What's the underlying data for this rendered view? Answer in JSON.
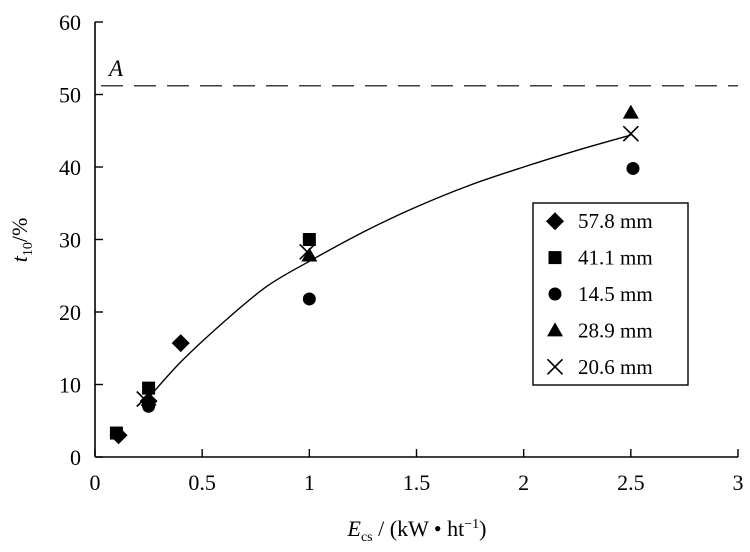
{
  "chart_data": {
    "type": "scatter",
    "title": "",
    "xlabel": {
      "variable": "E",
      "subscript": "cs",
      "units_prefix": " / (kW • ht",
      "superscript": "−1",
      "units_suffix": ")"
    },
    "ylabel": {
      "variable": "t",
      "subscript": "10",
      "units": "/%"
    },
    "xlim": [
      0,
      3
    ],
    "ylim": [
      0,
      60
    ],
    "xticks": [
      "0",
      "0.5",
      "1",
      "1.5",
      "2",
      "2.5",
      "3"
    ],
    "xtick_values": [
      0,
      0.5,
      1,
      1.5,
      2,
      2.5,
      3
    ],
    "yticks": [
      "0",
      "10",
      "20",
      "30",
      "40",
      "50",
      "60"
    ],
    "ytick_values": [
      0,
      10,
      20,
      30,
      40,
      50,
      60
    ],
    "grid": false,
    "legend_position": "center-right",
    "series": [
      {
        "name": "57.8 mm",
        "marker": "diamond",
        "points": [
          [
            0.11,
            3.0
          ],
          [
            0.25,
            7.7
          ],
          [
            0.4,
            15.7
          ]
        ]
      },
      {
        "name": "41.1 mm",
        "marker": "square",
        "points": [
          [
            0.1,
            3.3
          ],
          [
            0.25,
            9.5
          ],
          [
            1.0,
            30.0
          ]
        ]
      },
      {
        "name": "14.5 mm",
        "marker": "circle",
        "points": [
          [
            0.25,
            7.0
          ],
          [
            1.0,
            21.8
          ],
          [
            2.51,
            39.8
          ]
        ]
      },
      {
        "name": "28.9 mm",
        "marker": "triangle",
        "points": [
          [
            0.25,
            7.9
          ],
          [
            1.0,
            27.8
          ],
          [
            2.5,
            47.5
          ]
        ]
      },
      {
        "name": "20.6 mm",
        "marker": "cross",
        "points": [
          [
            0.23,
            8.0
          ],
          [
            0.99,
            28.3
          ],
          [
            2.5,
            44.6
          ]
        ]
      }
    ],
    "fit_curve": {
      "name": "trend",
      "points": [
        [
          0.23,
          7.5
        ],
        [
          0.4,
          13.1
        ],
        [
          0.6,
          18.6
        ],
        [
          0.8,
          23.5
        ],
        [
          1.0,
          27.0
        ],
        [
          1.25,
          31.0
        ],
        [
          1.5,
          34.5
        ],
        [
          1.75,
          37.5
        ],
        [
          2.0,
          40.0
        ],
        [
          2.25,
          42.3
        ],
        [
          2.5,
          44.4
        ]
      ]
    },
    "reference_line": {
      "label": "A",
      "y": 51.2,
      "style": "dashed"
    }
  }
}
